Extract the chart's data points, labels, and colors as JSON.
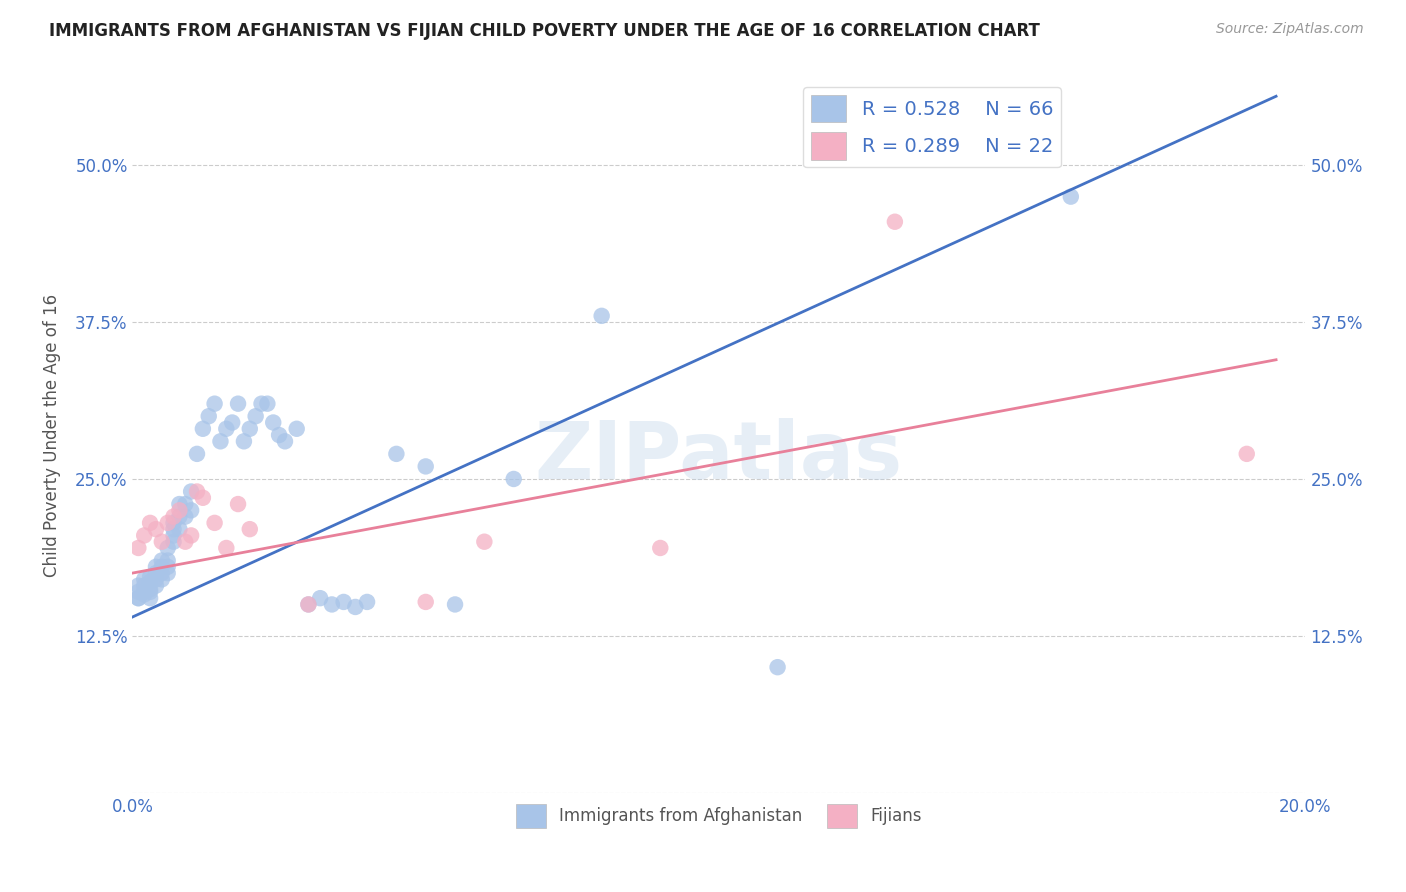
{
  "title": "IMMIGRANTS FROM AFGHANISTAN VS FIJIAN CHILD POVERTY UNDER THE AGE OF 16 CORRELATION CHART",
  "source": "Source: ZipAtlas.com",
  "ylabel": "Child Poverty Under the Age of 16",
  "xlim": [
    0.0,
    0.2
  ],
  "ylim": [
    0.0,
    0.57
  ],
  "yticks": [
    0.0,
    0.125,
    0.25,
    0.375,
    0.5
  ],
  "ytick_labels_left": [
    "",
    "12.5%",
    "25.0%",
    "37.5%",
    "50.0%"
  ],
  "ytick_labels_right": [
    "",
    "12.5%",
    "25.0%",
    "37.5%",
    "50.0%"
  ],
  "xticks": [
    0.0,
    0.04,
    0.08,
    0.12,
    0.16,
    0.2
  ],
  "xtick_labels": [
    "0.0%",
    "",
    "",
    "",
    "",
    "20.0%"
  ],
  "legend_blue_r": "R = 0.528",
  "legend_blue_n": "N = 66",
  "legend_pink_r": "R = 0.289",
  "legend_pink_n": "N = 22",
  "blue_color": "#a8c4e8",
  "pink_color": "#f4b0c4",
  "blue_line_color": "#4472c4",
  "pink_line_color": "#e8809a",
  "title_color": "#222222",
  "axis_label_color": "#555555",
  "tick_color": "#4472c4",
  "watermark": "ZIPatlas",
  "blue_line_x0": 0.0,
  "blue_line_y0": 0.14,
  "blue_line_x1": 0.195,
  "blue_line_y1": 0.555,
  "pink_line_x0": 0.0,
  "pink_line_y0": 0.175,
  "pink_line_x1": 0.195,
  "pink_line_y1": 0.345,
  "blue_scatter_x": [
    0.001,
    0.001,
    0.001,
    0.001,
    0.002,
    0.002,
    0.002,
    0.002,
    0.003,
    0.003,
    0.003,
    0.003,
    0.003,
    0.004,
    0.004,
    0.004,
    0.004,
    0.005,
    0.005,
    0.005,
    0.005,
    0.006,
    0.006,
    0.006,
    0.006,
    0.007,
    0.007,
    0.007,
    0.007,
    0.008,
    0.008,
    0.008,
    0.009,
    0.009,
    0.01,
    0.01,
    0.011,
    0.012,
    0.013,
    0.014,
    0.015,
    0.016,
    0.017,
    0.018,
    0.019,
    0.02,
    0.021,
    0.022,
    0.023,
    0.024,
    0.025,
    0.026,
    0.028,
    0.03,
    0.032,
    0.034,
    0.036,
    0.038,
    0.04,
    0.045,
    0.05,
    0.055,
    0.065,
    0.08,
    0.11,
    0.16
  ],
  "blue_scatter_y": [
    0.155,
    0.16,
    0.165,
    0.155,
    0.16,
    0.165,
    0.17,
    0.158,
    0.162,
    0.168,
    0.172,
    0.155,
    0.16,
    0.165,
    0.17,
    0.175,
    0.18,
    0.17,
    0.175,
    0.18,
    0.185,
    0.175,
    0.18,
    0.185,
    0.195,
    0.2,
    0.205,
    0.21,
    0.215,
    0.21,
    0.22,
    0.23,
    0.22,
    0.23,
    0.225,
    0.24,
    0.27,
    0.29,
    0.3,
    0.31,
    0.28,
    0.29,
    0.295,
    0.31,
    0.28,
    0.29,
    0.3,
    0.31,
    0.31,
    0.295,
    0.285,
    0.28,
    0.29,
    0.15,
    0.155,
    0.15,
    0.152,
    0.148,
    0.152,
    0.27,
    0.26,
    0.15,
    0.25,
    0.38,
    0.1,
    0.475
  ],
  "pink_scatter_x": [
    0.001,
    0.002,
    0.003,
    0.004,
    0.005,
    0.006,
    0.007,
    0.008,
    0.009,
    0.01,
    0.011,
    0.012,
    0.014,
    0.016,
    0.018,
    0.02,
    0.03,
    0.05,
    0.06,
    0.09,
    0.13,
    0.19
  ],
  "pink_scatter_y": [
    0.195,
    0.205,
    0.215,
    0.21,
    0.2,
    0.215,
    0.22,
    0.225,
    0.2,
    0.205,
    0.24,
    0.235,
    0.215,
    0.195,
    0.23,
    0.21,
    0.15,
    0.152,
    0.2,
    0.195,
    0.455,
    0.27
  ]
}
